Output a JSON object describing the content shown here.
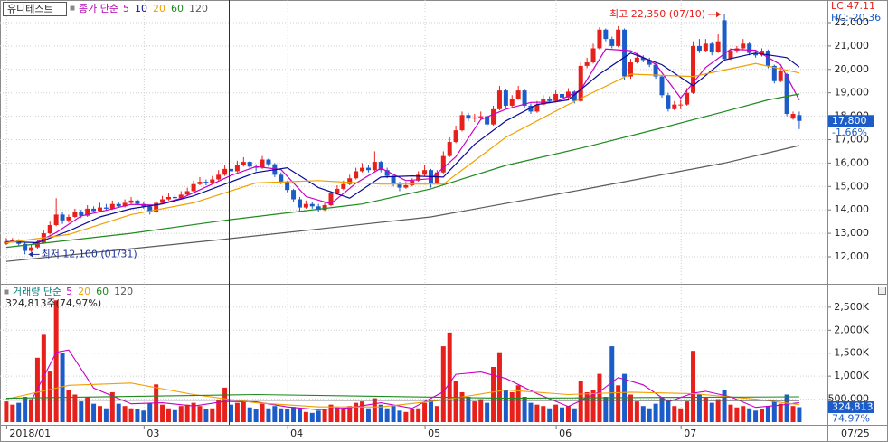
{
  "chart_data": [
    {
      "type": "candlestick",
      "title": "유니테스트",
      "legend_title": "종가 단순",
      "legend_color": "#b000b0",
      "up_color": "#e8201c",
      "down_color": "#1c5cc8",
      "grid": true,
      "xlim": [
        -1,
        131.5
      ],
      "xticks": [
        {
          "value": 0,
          "label": "2018/01"
        },
        {
          "value": 22,
          "label": "03"
        },
        {
          "value": 45,
          "label": "04"
        },
        {
          "value": 67,
          "label": "05"
        },
        {
          "value": 88,
          "label": "06"
        },
        {
          "value": 108,
          "label": "07"
        }
      ],
      "last_date_label": "07/25",
      "ylim": [
        10880,
        22965
      ],
      "yticks": [
        {
          "value": 12000,
          "label": "12,000"
        },
        {
          "value": 13000,
          "label": "13,000"
        },
        {
          "value": 14000,
          "label": "14,000"
        },
        {
          "value": 15000,
          "label": "15,000"
        },
        {
          "value": 16000,
          "label": "16,000"
        },
        {
          "value": 17000,
          "label": "17,000"
        },
        {
          "value": 18000,
          "label": "18,000"
        },
        {
          "value": 19000,
          "label": "19,000"
        },
        {
          "value": 20000,
          "label": "20,000"
        },
        {
          "value": 21000,
          "label": "21,000"
        },
        {
          "value": 22000,
          "label": "22,000"
        }
      ],
      "open": [
        12550,
        12650,
        12700,
        12550,
        12250,
        12400,
        12600,
        13000,
        13350,
        13800,
        13550,
        13700,
        13900,
        13750,
        14050,
        13950,
        14100,
        14050,
        14250,
        14150,
        14300,
        14400,
        14250,
        14150,
        13900,
        14300,
        14450,
        14550,
        14500,
        14650,
        14800,
        15100,
        15200,
        15150,
        15300,
        15500,
        15750,
        15650,
        15900,
        16050,
        15850,
        15800,
        16150,
        15950,
        15500,
        15200,
        14850,
        14450,
        14100,
        14250,
        14150,
        14000,
        14200,
        14700,
        14900,
        15100,
        15350,
        15650,
        15800,
        15700,
        16050,
        15700,
        15450,
        15100,
        14950,
        15050,
        15250,
        15500,
        15700,
        15150,
        15600,
        16300,
        16900,
        17400,
        18050,
        17900,
        17950,
        18000,
        17650,
        18300,
        19100,
        18450,
        18750,
        19100,
        18450,
        18200,
        18500,
        18750,
        18650,
        18950,
        18800,
        19050,
        18650,
        20150,
        20300,
        20900,
        21700,
        21300,
        21000,
        21700,
        19700,
        20300,
        20500,
        20400,
        20200,
        19700,
        18900,
        18300,
        18500,
        18500,
        19000,
        21000,
        20800,
        21100,
        20750,
        22100,
        20450,
        20800,
        20900,
        21100,
        20700,
        20600,
        20800,
        20150,
        19500,
        19800,
        17900,
        18050
      ],
      "high": [
        12800,
        12800,
        12750,
        12600,
        12500,
        12700,
        13150,
        13500,
        14500,
        13900,
        13800,
        14050,
        14000,
        14200,
        14150,
        14300,
        14250,
        14400,
        14350,
        14450,
        14550,
        14450,
        14350,
        14200,
        14400,
        14600,
        14700,
        14650,
        14800,
        14950,
        15250,
        15400,
        15300,
        15450,
        15700,
        15900,
        15850,
        16100,
        16250,
        16100,
        15950,
        16300,
        16200,
        16000,
        15600,
        15250,
        14900,
        14550,
        14400,
        14350,
        14250,
        14350,
        14800,
        15050,
        15250,
        15500,
        15800,
        16000,
        15900,
        16500,
        16100,
        15800,
        15500,
        15200,
        15200,
        15350,
        15650,
        15900,
        15750,
        15700,
        16500,
        17100,
        17600,
        18200,
        18150,
        18100,
        18200,
        18050,
        18450,
        19300,
        19150,
        18900,
        19300,
        19150,
        18550,
        18650,
        18900,
        18850,
        19100,
        19000,
        19200,
        19100,
        20300,
        20500,
        21100,
        21800,
        21750,
        21400,
        21850,
        21750,
        20450,
        20700,
        20600,
        20500,
        20300,
        19750,
        19000,
        18650,
        18700,
        19200,
        21200,
        21300,
        21300,
        21150,
        21500,
        22350,
        20900,
        21000,
        21300,
        21150,
        20800,
        20900,
        20850,
        20200,
        20100,
        19850,
        18200,
        18200
      ],
      "low": [
        12500,
        12600,
        12450,
        12100,
        12200,
        12350,
        12550,
        12950,
        13300,
        13400,
        13450,
        13650,
        13650,
        13700,
        13900,
        13900,
        14000,
        14000,
        14100,
        14100,
        14250,
        14200,
        14050,
        13800,
        13850,
        14250,
        14400,
        14400,
        14450,
        14600,
        14750,
        15050,
        15050,
        15100,
        15250,
        15450,
        15550,
        15600,
        15850,
        15750,
        15650,
        15750,
        15850,
        15400,
        15100,
        14750,
        14350,
        13950,
        14050,
        14050,
        13900,
        13950,
        14150,
        14650,
        14850,
        15050,
        15300,
        15600,
        15600,
        15650,
        15600,
        15350,
        15000,
        14800,
        14900,
        15000,
        15200,
        15450,
        14950,
        15100,
        15550,
        16250,
        16850,
        17350,
        17800,
        17750,
        17850,
        17550,
        17600,
        18250,
        18350,
        18400,
        18700,
        18350,
        18100,
        18150,
        18450,
        18550,
        18600,
        18700,
        18750,
        18550,
        18600,
        20050,
        20250,
        20850,
        21200,
        20900,
        20950,
        19550,
        19600,
        20250,
        20300,
        20100,
        19600,
        18800,
        18200,
        18250,
        18300,
        18450,
        18950,
        20700,
        20750,
        20600,
        20700,
        20400,
        20400,
        20700,
        20850,
        20600,
        20500,
        20550,
        20050,
        19400,
        19450,
        18000,
        17850,
        17450
      ],
      "close": [
        12650,
        12700,
        12550,
        12250,
        12400,
        12600,
        13000,
        13350,
        13800,
        13550,
        13700,
        13900,
        13750,
        14050,
        13950,
        14100,
        14050,
        14250,
        14150,
        14300,
        14400,
        14250,
        14150,
        13900,
        14300,
        14450,
        14550,
        14500,
        14650,
        14800,
        15100,
        15200,
        15150,
        15300,
        15500,
        15750,
        15650,
        15900,
        16050,
        15850,
        15800,
        16150,
        15950,
        15500,
        15200,
        14850,
        14450,
        14100,
        14250,
        14150,
        14000,
        14200,
        14700,
        14900,
        15100,
        15350,
        15650,
        15800,
        15700,
        16050,
        15700,
        15450,
        15100,
        14950,
        15050,
        15250,
        15500,
        15700,
        15150,
        15600,
        16300,
        16900,
        17400,
        18050,
        17900,
        17950,
        18000,
        17650,
        18300,
        19100,
        18450,
        18750,
        19100,
        18450,
        18200,
        18500,
        18750,
        18650,
        18950,
        18800,
        19050,
        18650,
        20150,
        20300,
        20900,
        21700,
        21300,
        21000,
        21700,
        19700,
        20300,
        20500,
        20400,
        20200,
        19700,
        18900,
        18300,
        18500,
        18500,
        19000,
        21000,
        20800,
        21100,
        20750,
        21200,
        20450,
        20800,
        20900,
        21100,
        20700,
        20600,
        20800,
        20150,
        19500,
        19950,
        18100,
        18100,
        17800
      ],
      "ma": [
        {
          "name": "5",
          "color": "#c800c8",
          "x": [
            4,
            8,
            12,
            16,
            20,
            24,
            28,
            32,
            36,
            40,
            44,
            48,
            52,
            56,
            60,
            64,
            68,
            72,
            76,
            80,
            84,
            88,
            92,
            96,
            100,
            104,
            108,
            112,
            116,
            120,
            124,
            127
          ],
          "values": [
            12510,
            13030,
            13740,
            13980,
            14230,
            14200,
            14490,
            14980,
            15470,
            15850,
            15720,
            14570,
            14260,
            15140,
            15780,
            15250,
            15330,
            16270,
            17860,
            18300,
            18590,
            18610,
            19120,
            20870,
            20800,
            20220,
            18780,
            20080,
            20860,
            20820,
            20200,
            18690
          ]
        },
        {
          "name": "10",
          "color": "#0a0a96",
          "x": [
            0,
            5,
            10,
            15,
            20,
            25,
            30,
            35,
            40,
            45,
            50,
            55,
            60,
            65,
            70,
            75,
            80,
            85,
            90,
            95,
            100,
            105,
            110,
            115,
            120,
            125,
            127
          ],
          "values": [
            12650,
            12600,
            13100,
            13700,
            14050,
            14250,
            14600,
            15100,
            15600,
            15800,
            14950,
            14500,
            15400,
            15450,
            15400,
            16800,
            17800,
            18500,
            18700,
            19800,
            20700,
            20200,
            19300,
            20400,
            20700,
            20500,
            20100
          ]
        },
        {
          "name": "20",
          "color": "#f0a000",
          "x": [
            0,
            10,
            20,
            30,
            40,
            50,
            60,
            70,
            80,
            90,
            100,
            110,
            120,
            127
          ],
          "values": [
            12600,
            12950,
            13800,
            14300,
            15150,
            15250,
            15100,
            15100,
            17100,
            18500,
            19800,
            19700,
            20250,
            19850
          ]
        },
        {
          "name": "60",
          "color": "#1f8a1f",
          "x": [
            0,
            20,
            35,
            57,
            68,
            80,
            93,
            105,
            115,
            122,
            127
          ],
          "values": [
            12400,
            13000,
            13550,
            14250,
            14900,
            15900,
            16700,
            17500,
            18200,
            18700,
            18950
          ]
        },
        {
          "name": "120",
          "color": "#5a5a5a",
          "x": [
            0,
            35,
            68,
            93,
            115,
            127
          ],
          "values": [
            11800,
            12750,
            13700,
            14900,
            16000,
            16750
          ]
        }
      ],
      "annotations": [
        {
          "text": "최고 22,350 (07/10)",
          "x": 115,
          "y": 22350,
          "color": "#e8201c"
        },
        {
          "text": "최저 12,100 (01/31)",
          "x": 3,
          "y": 12100,
          "color": "#1a2f9a"
        }
      ],
      "last_price": {
        "value": 17800,
        "label": "17,800"
      },
      "change_label": "-1.66%",
      "lc_label": "LC:47.11",
      "hc_label": "HC:-20.36"
    },
    {
      "type": "bar",
      "title": "거래량 단순",
      "legend_title": "거래량 단순",
      "legend_color": "#008080",
      "grid": true,
      "header_note": "324,813주(74,97%)",
      "ylim": [
        0,
        2930000
      ],
      "yticks": [
        {
          "value": 500000,
          "label": "500,000"
        },
        {
          "value": 1000000,
          "label": "1,000K"
        },
        {
          "value": 1500000,
          "label": "1,500K"
        },
        {
          "value": 2000000,
          "label": "2,000K"
        },
        {
          "value": 2500000,
          "label": "2,500K"
        }
      ],
      "values": [
        450000,
        380000,
        420000,
        550000,
        500000,
        1400000,
        1900000,
        1100000,
        2650000,
        1500000,
        700000,
        600000,
        450000,
        550000,
        400000,
        350000,
        300000,
        650000,
        400000,
        350000,
        300000,
        280000,
        250000,
        420000,
        820000,
        380000,
        300000,
        260000,
        350000,
        380000,
        420000,
        350000,
        280000,
        300000,
        480000,
        750000,
        380000,
        420000,
        450000,
        320000,
        280000,
        400000,
        300000,
        350000,
        300000,
        280000,
        330000,
        300000,
        220000,
        200000,
        250000,
        280000,
        380000,
        320000,
        300000,
        350000,
        420000,
        450000,
        300000,
        520000,
        380000,
        300000,
        350000,
        250000,
        220000,
        280000,
        300000,
        420000,
        480000,
        350000,
        1650000,
        1950000,
        900000,
        650000,
        550000,
        450000,
        500000,
        420000,
        1200000,
        1520000,
        700000,
        650000,
        800000,
        550000,
        420000,
        380000,
        350000,
        300000,
        380000,
        320000,
        350000,
        300000,
        900000,
        650000,
        700000,
        1050000,
        550000,
        1650000,
        800000,
        1050000,
        600000,
        450000,
        350000,
        300000,
        400000,
        550000,
        480000,
        350000,
        300000,
        450000,
        1550000,
        600000,
        550000,
        420000,
        500000,
        700000,
        380000,
        320000,
        350000,
        300000,
        250000,
        280000,
        350000,
        450000,
        400000,
        600000,
        350000,
        324813
      ],
      "ma": [
        {
          "name": "5",
          "color": "#c800c8",
          "x": [
            4,
            8,
            10,
            14,
            20,
            25,
            30,
            35,
            40,
            45,
            50,
            55,
            60,
            65,
            70,
            72,
            76,
            80,
            85,
            90,
            95,
            98,
            102,
            106,
            110,
            112,
            116,
            120,
            124,
            127
          ],
          "values": [
            460000,
            1520000,
            1570000,
            740000,
            400000,
            420000,
            350000,
            450000,
            440000,
            330000,
            270000,
            310000,
            420000,
            300000,
            660000,
            1040000,
            1090000,
            950000,
            620000,
            340000,
            660000,
            970000,
            810000,
            440000,
            630000,
            670000,
            550000,
            320000,
            370000,
            425000
          ]
        },
        {
          "name": "20",
          "color": "#f0a000",
          "x": [
            0,
            10,
            20,
            30,
            40,
            50,
            60,
            70,
            80,
            90,
            100,
            110,
            120,
            127
          ],
          "values": [
            500000,
            800000,
            850000,
            600000,
            420000,
            330000,
            330000,
            480000,
            700000,
            600000,
            650000,
            620000,
            500000,
            380000
          ]
        },
        {
          "name": "60",
          "color": "#1f8a1f",
          "x": [
            0,
            40,
            80,
            127
          ],
          "values": [
            520000,
            600000,
            520000,
            550000
          ]
        },
        {
          "name": "120",
          "color": "#5a5a5a",
          "x": [
            0,
            127
          ],
          "values": [
            480000,
            470000
          ]
        }
      ],
      "current": {
        "value": 324813,
        "label": "324,813"
      },
      "ratio_label": "74.97%"
    }
  ]
}
